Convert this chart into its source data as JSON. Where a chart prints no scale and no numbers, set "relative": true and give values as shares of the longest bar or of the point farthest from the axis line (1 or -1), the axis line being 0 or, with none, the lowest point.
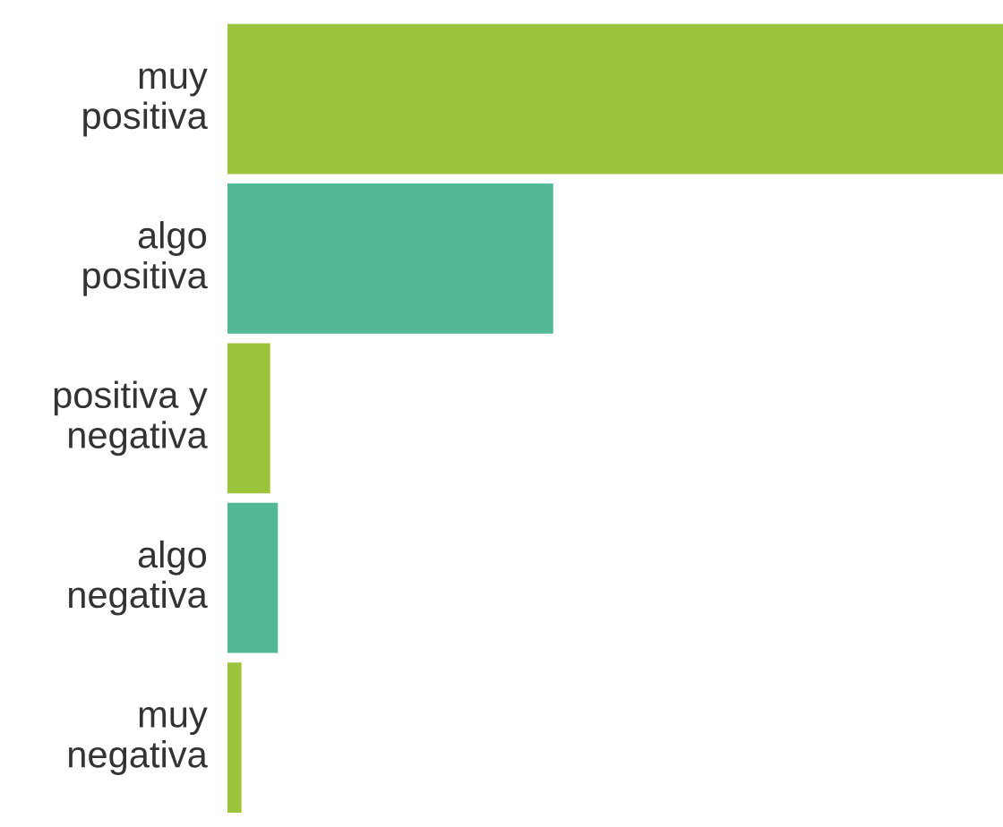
{
  "chart_data": {
    "type": "bar",
    "orientation": "horizontal",
    "relative": true,
    "categories": [
      "muy\npositiva",
      "algo\npositiva",
      "positiva y\nnegativa",
      "algo\nnegativa",
      "muy\nnegativa"
    ],
    "values": [
      1,
      0.42,
      0.055,
      0.065,
      0.018
    ],
    "colors": [
      "#9bc43c",
      "#52b994",
      "#9bc43c",
      "#52b994",
      "#9bc43c"
    ],
    "grid": false,
    "legend": false
  }
}
